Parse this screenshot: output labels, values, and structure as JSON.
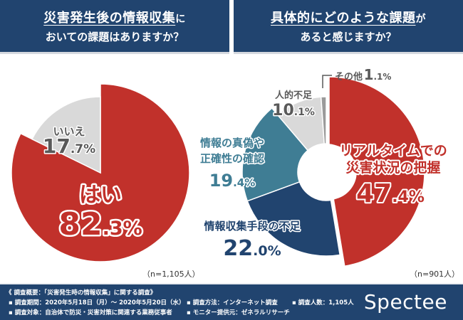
{
  "headers": {
    "left": {
      "underlined": "災害発生後の情報収集",
      "suffix": "に",
      "line2": "おいての課題はありますか？"
    },
    "right": {
      "underlined": "具体的にどのような課題",
      "suffix": "が",
      "line2": "あると感じますか？"
    }
  },
  "chart_data": [
    {
      "type": "pie",
      "title": "災害発生後の情報収集においての課題はありますか？",
      "categories": [
        "はい",
        "いいえ"
      ],
      "values": [
        82.3,
        17.7
      ],
      "value_labels": [
        "82.3%",
        "17.7%"
      ],
      "colors": [
        "#c1312b",
        "#d9d9d9"
      ],
      "sample_size": "（n=1,105人）"
    },
    {
      "type": "pie",
      "subtype": "donut",
      "title": "具体的にどのような課題があると感じますか？",
      "categories": [
        "リアルタイムでの災害状況の把握",
        "情報収集手段の不足",
        "情報の真偽や正確性の確認",
        "人的不足",
        "その他"
      ],
      "label_lines": [
        [
          "リアルタイムでの",
          "災害状況の把握"
        ],
        [
          "情報収集手段の不足"
        ],
        [
          "情報の真偽や",
          "正確性の確認"
        ],
        [
          "人的不足"
        ],
        [
          "その他"
        ]
      ],
      "values": [
        47.4,
        22.0,
        19.4,
        10.1,
        1.1
      ],
      "value_labels": [
        "47.4%",
        "22.0%",
        "19.4%",
        "10.1%",
        "1.1%"
      ],
      "colors": [
        "#c1312b",
        "#21446f",
        "#3f7d94",
        "#d9d9d9",
        "#9a9a9a"
      ],
      "label_colors": [
        "#c1312b",
        "#21446f",
        "#3f7d94",
        "#595959",
        "#595959"
      ],
      "sample_size": "（n=901人）"
    }
  ],
  "footer": {
    "summary": "《 調査概要：「災害発生時の情報収集」に関する調査》",
    "period": "▪ 調査期間：2020年5月18日（月）～ 2020年5月20日（水）",
    "method": "▪ 調査方法：インターネット調査",
    "count": "▪ 調査人数：1,105人",
    "target": "▪ 調査対象：自治体で防災・災害対策に関連する業務従事者",
    "provider": "▪ モニター提供元：ゼネラルリサーチ",
    "logo": "Spectee"
  }
}
